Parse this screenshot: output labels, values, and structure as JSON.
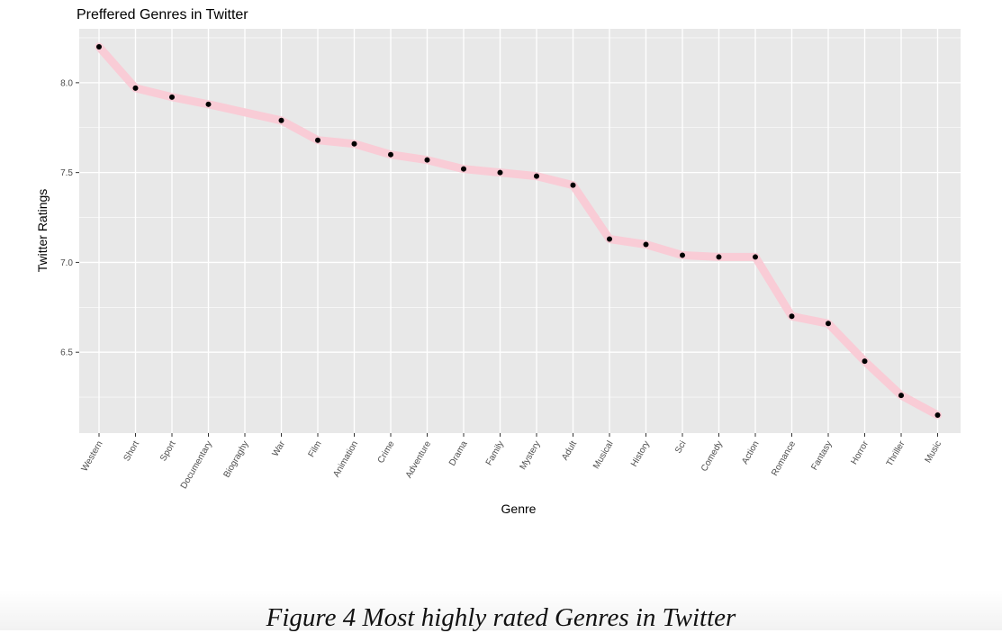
{
  "chart_data": {
    "type": "line",
    "title": "Preffered Genres in Twitter",
    "xlabel": "Genre",
    "ylabel": "Twitter Ratings",
    "ylim": [
      6.05,
      8.3
    ],
    "yticks": [
      6.5,
      7.0,
      7.5,
      8.0
    ],
    "ytick_labels": [
      "6.5",
      "7.0",
      "7.5",
      "8.0"
    ],
    "grid": true,
    "categories": [
      "Western",
      "Short",
      "Sport",
      "Documentary",
      "Biograghy",
      "War",
      "Film",
      "Animation",
      "Crime",
      "Adventure",
      "Drama",
      "Family",
      "Mystery",
      "Adult",
      "Musical",
      "History",
      "Sci",
      "Comedy",
      "Action",
      "Romance",
      "Fantasy",
      "Horror",
      "Thriller",
      "Music"
    ],
    "values": [
      8.2,
      7.97,
      7.92,
      7.88,
      null,
      7.79,
      7.68,
      7.66,
      7.6,
      7.57,
      7.52,
      7.5,
      7.48,
      7.43,
      7.13,
      7.1,
      7.04,
      7.03,
      7.03,
      6.7,
      6.66,
      6.45,
      6.26,
      6.15
    ],
    "line_color": "#f9ccd6",
    "point_color": "#000000",
    "panel_color": "#e8e8e8",
    "grid_color": "#ffffff"
  },
  "caption": "Figure 4 Most highly rated Genres in Twitter"
}
